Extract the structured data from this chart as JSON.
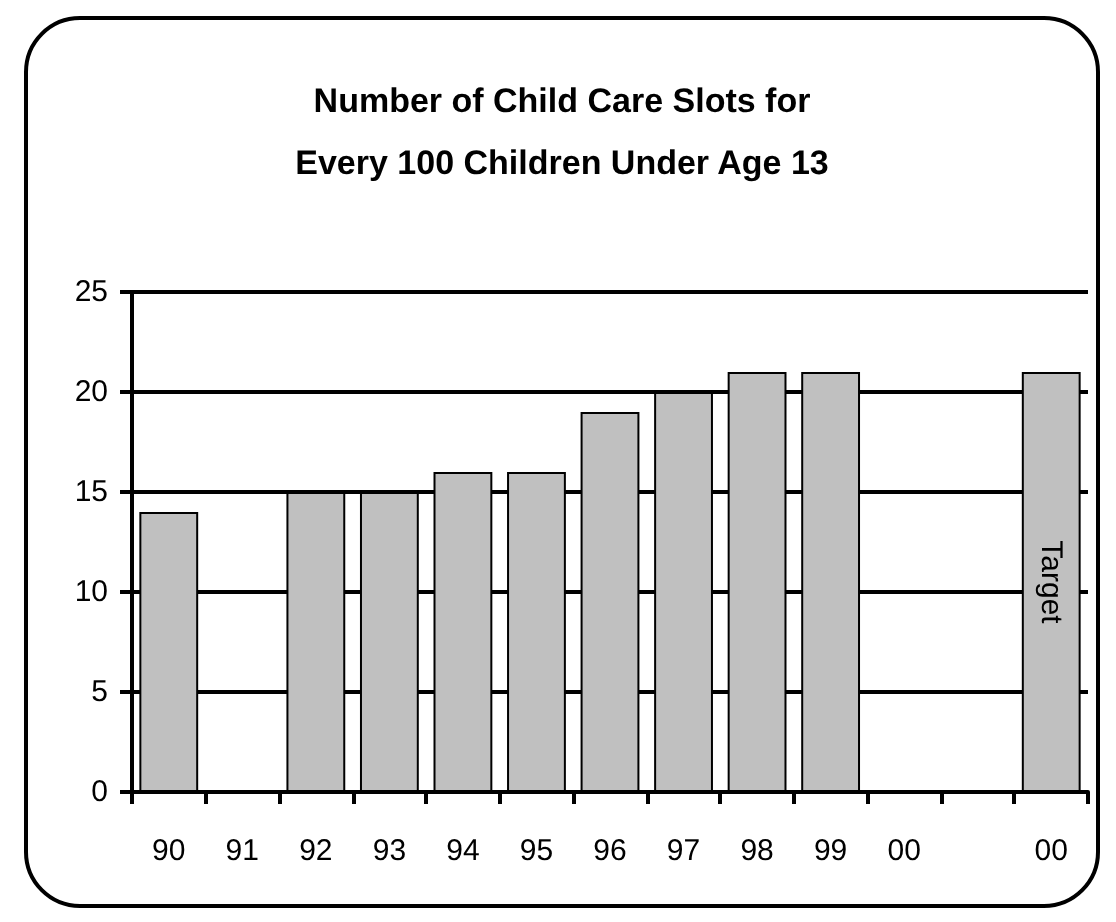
{
  "chart_data": {
    "type": "bar",
    "title": "Number of Child Care Slots for\nEvery 100 Children Under Age 13",
    "categories": [
      "90",
      "91",
      "92",
      "93",
      "94",
      "95",
      "96",
      "97",
      "98",
      "99",
      "00",
      null,
      "00"
    ],
    "values": [
      14,
      null,
      15,
      15,
      16,
      16,
      19,
      20,
      21,
      21,
      null,
      null,
      21
    ],
    "value_labels": [
      null,
      null,
      null,
      null,
      null,
      null,
      null,
      null,
      null,
      null,
      null,
      null,
      "Target"
    ],
    "color": "#c0c0c0",
    "ylim": [
      0,
      25
    ],
    "yticks": [
      0,
      5,
      10,
      15,
      20,
      25
    ],
    "grid": "y"
  }
}
